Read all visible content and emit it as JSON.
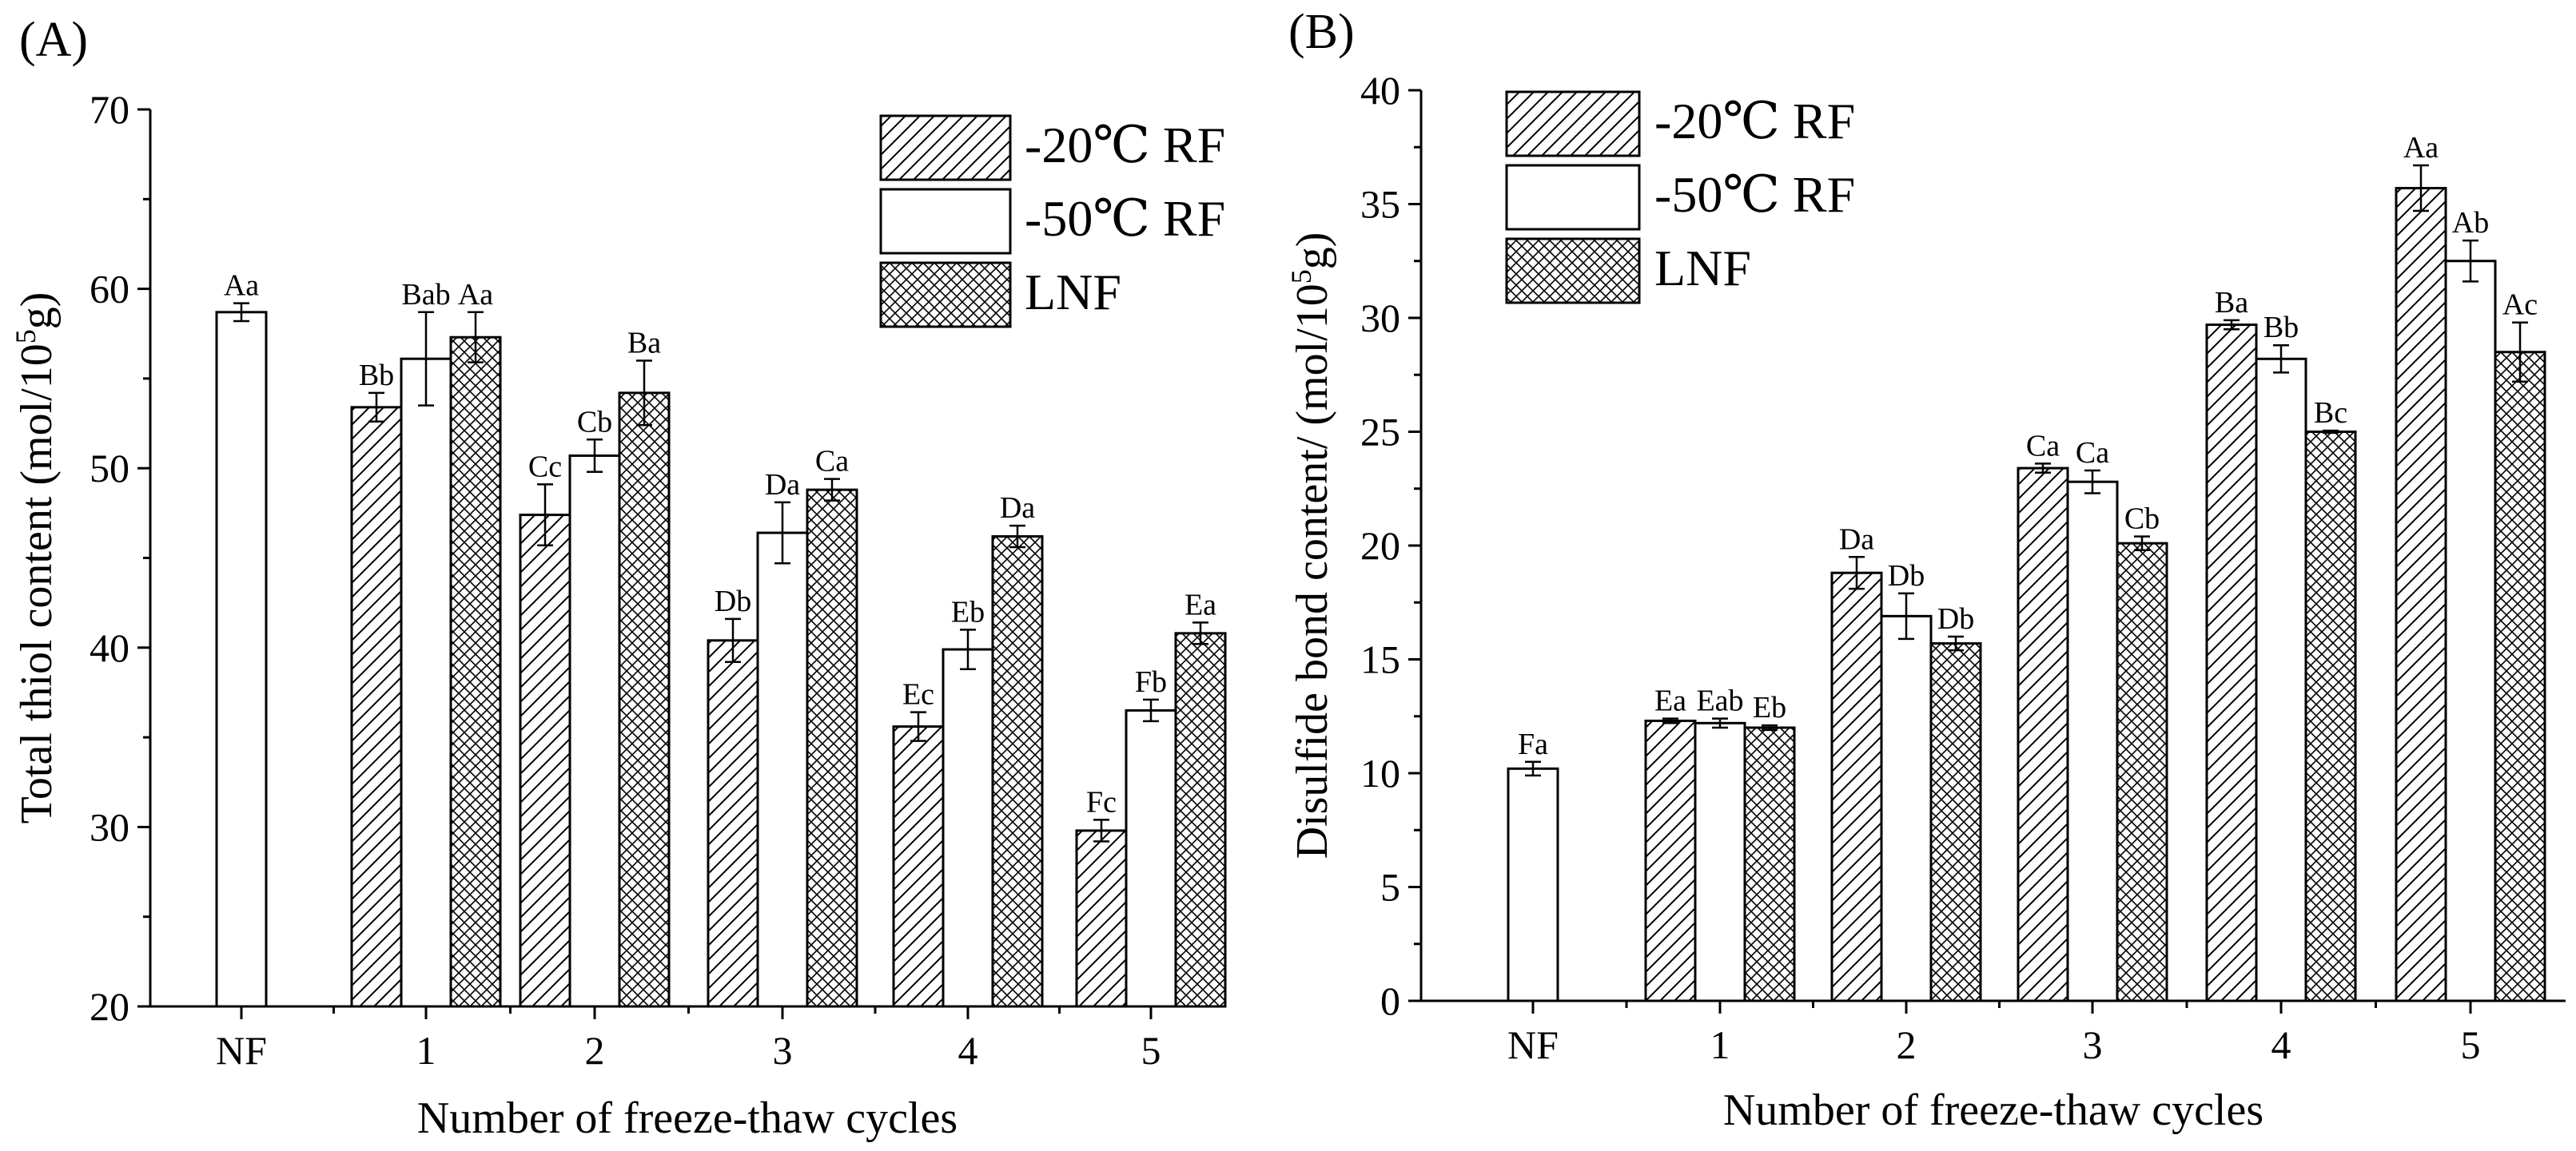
{
  "colors": {
    "ink": "#000000",
    "background": "#ffffff"
  },
  "chart_data": [
    {
      "type": "bar",
      "panel_label": "(A)",
      "xlabel": "Number of freeze-thaw cycles",
      "ylabel": "Total thiol content (mol/10",
      "ylabel_sup": "5",
      "ylabel_tail": "g)",
      "ylim": [
        20,
        70
      ],
      "yticks": [
        20,
        30,
        40,
        50,
        60,
        70
      ],
      "categories": [
        "NF",
        "1",
        "2",
        "3",
        "4",
        "5"
      ],
      "legend_position": "top-right",
      "legend": [
        "-20℃ RF",
        "-50℃ RF",
        "LNF"
      ],
      "series": [
        {
          "name": "-20℃ RF",
          "pattern": "hatch",
          "values": [
            null,
            53.4,
            47.4,
            40.4,
            35.6,
            29.8
          ],
          "errors": [
            null,
            0.8,
            1.7,
            1.2,
            0.8,
            0.6
          ],
          "labels": [
            "",
            "Bb",
            "Cc",
            "Db",
            "Ec",
            "Fc"
          ]
        },
        {
          "name": "-50℃ RF",
          "pattern": "none",
          "values": [
            58.7,
            56.1,
            50.7,
            46.4,
            39.9,
            36.5
          ],
          "errors": [
            0.5,
            2.6,
            0.9,
            1.7,
            1.1,
            0.6
          ],
          "labels": [
            "Aa",
            "Bab",
            "Cb",
            "Da",
            "Eb",
            "Fb"
          ]
        },
        {
          "name": "LNF",
          "pattern": "cross",
          "values": [
            null,
            57.3,
            54.2,
            48.8,
            46.2,
            40.8
          ],
          "errors": [
            null,
            1.4,
            1.8,
            0.6,
            0.6,
            0.6
          ],
          "labels": [
            "",
            "Aa",
            "Ba",
            "Ca",
            "Da",
            "Ea"
          ]
        }
      ]
    },
    {
      "type": "bar",
      "panel_label": "(B)",
      "xlabel": "Number of freeze-thaw cycles",
      "ylabel": "Disulfide bond content/ (mol/10",
      "ylabel_sup": "5",
      "ylabel_tail": "g)",
      "ylim": [
        0,
        40
      ],
      "yticks": [
        0,
        5,
        10,
        15,
        20,
        25,
        30,
        35,
        40
      ],
      "categories": [
        "NF",
        "1",
        "2",
        "3",
        "4",
        "5"
      ],
      "legend_position": "top-left",
      "legend": [
        "-20℃ RF",
        "-50℃ RF",
        "LNF"
      ],
      "series": [
        {
          "name": "-20℃ RF",
          "pattern": "hatch",
          "values": [
            null,
            12.3,
            18.8,
            23.4,
            29.7,
            35.7
          ],
          "errors": [
            null,
            0.1,
            0.7,
            0.2,
            0.2,
            1.0
          ],
          "labels": [
            "",
            "Ea",
            "Da",
            "Ca",
            "Ba",
            "Aa"
          ]
        },
        {
          "name": "-50℃ RF",
          "pattern": "none",
          "values": [
            10.2,
            12.2,
            16.9,
            22.8,
            28.2,
            32.5
          ],
          "errors": [
            0.3,
            0.2,
            1.0,
            0.5,
            0.6,
            0.9
          ],
          "labels": [
            "Fa",
            "Eab",
            "Db",
            "Ca",
            "Bb",
            "Ab"
          ]
        },
        {
          "name": "LNF",
          "pattern": "cross",
          "values": [
            null,
            12.0,
            15.7,
            20.1,
            25.0,
            28.5
          ],
          "errors": [
            null,
            0.1,
            0.3,
            0.3,
            0.05,
            1.3
          ],
          "labels": [
            "",
            "Eb",
            "Db",
            "Cb",
            "Bc",
            "Ac"
          ]
        }
      ]
    }
  ]
}
